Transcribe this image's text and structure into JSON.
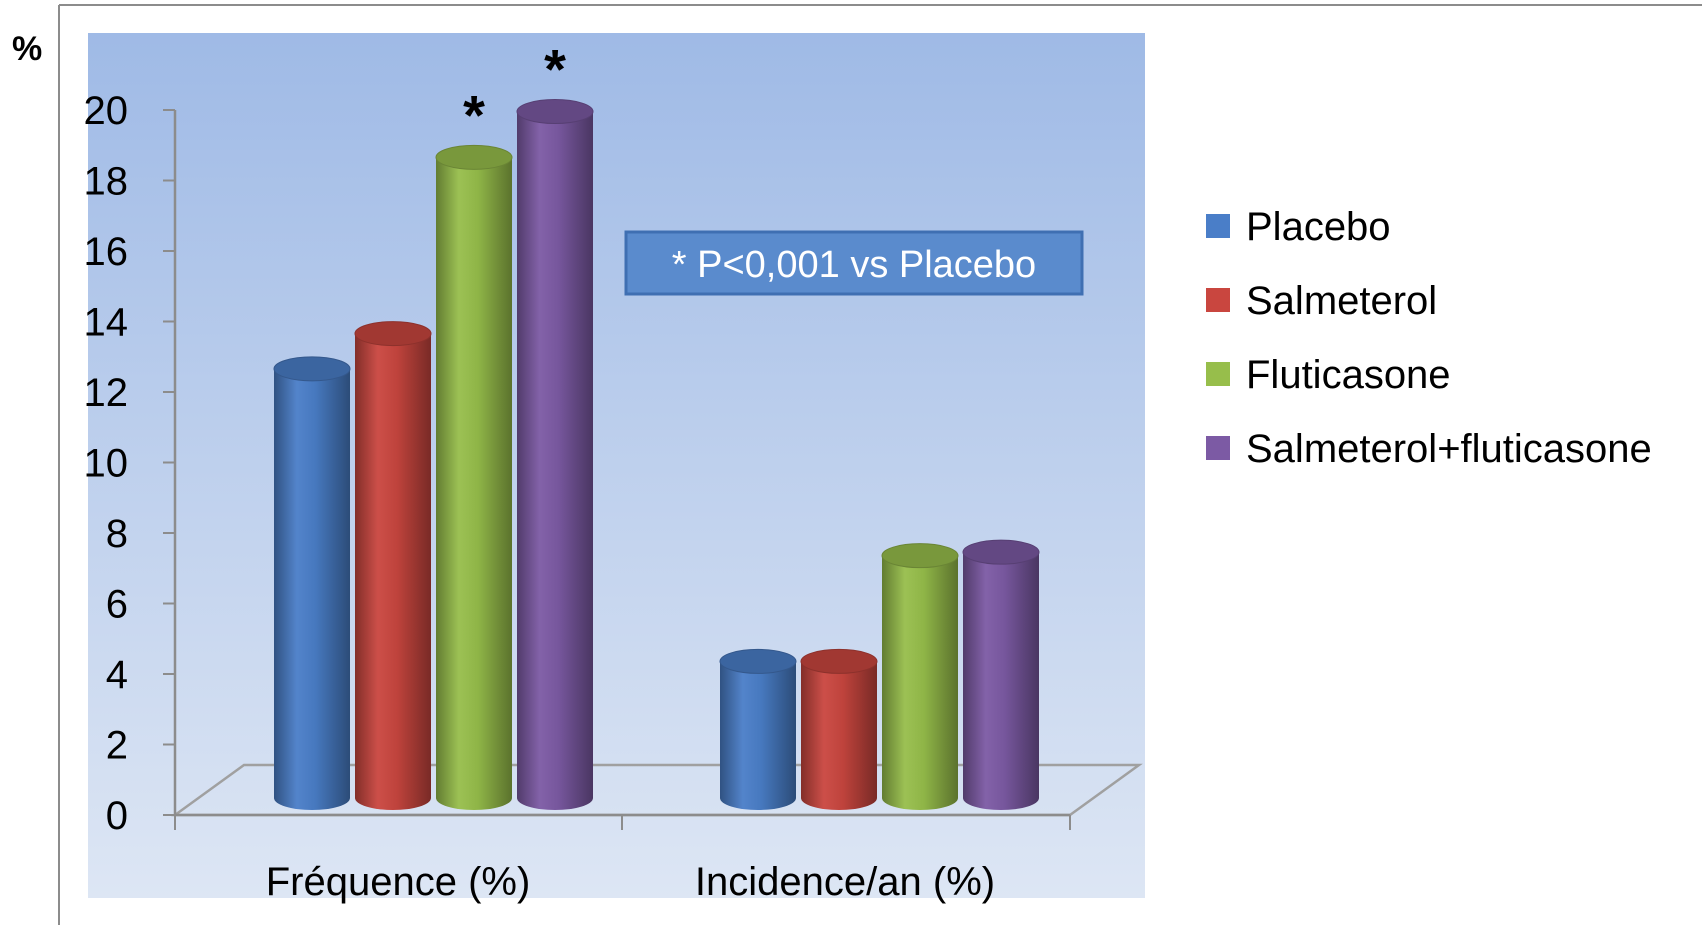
{
  "chart_data": {
    "type": "bar",
    "y_unit": "%",
    "categories": [
      "Fréquence (%)",
      "Incidence/an (%)"
    ],
    "series": [
      {
        "name": "Placebo",
        "values": [
          12.6,
          4.3
        ],
        "color": "#4a7ec8"
      },
      {
        "name": "Salmeterol",
        "values": [
          13.6,
          4.3
        ],
        "color": "#c9463f"
      },
      {
        "name": "Fluticasone",
        "values": [
          18.6,
          7.3
        ],
        "color": "#97be4b"
      },
      {
        "name": "Salmeterol+fluticasone",
        "values": [
          19.9,
          7.4
        ],
        "color": "#7c5aa4"
      }
    ],
    "ylim": [
      0,
      20
    ],
    "yticks": [
      "0",
      "2",
      "4",
      "6",
      "8",
      "10",
      "12",
      "14",
      "16",
      "18",
      "20"
    ],
    "significance_marker": "*",
    "significant_bars": [
      {
        "category": 0,
        "series": 2
      },
      {
        "category": 0,
        "series": 3
      }
    ],
    "annotation": "* P<0,001 vs Placebo",
    "legend_position": "right",
    "grid": false,
    "style": "3d-cylinder"
  }
}
